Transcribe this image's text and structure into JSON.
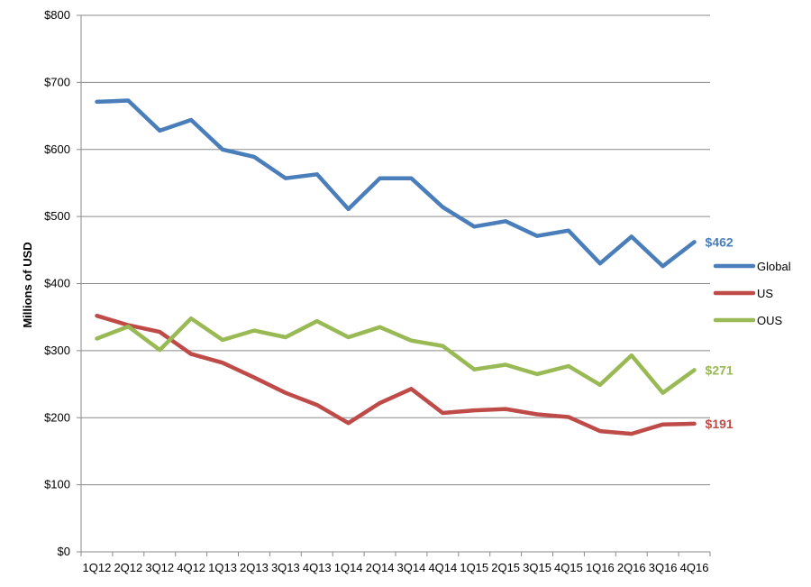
{
  "chart_data": {
    "type": "line",
    "title": "",
    "xlabel": "",
    "ylabel": "Millions of USD",
    "ylim": [
      0,
      800
    ],
    "yticks": [
      "$0",
      "$100",
      "$200",
      "$300",
      "$400",
      "$500",
      "$600",
      "$700",
      "$800"
    ],
    "ytick_values": [
      0,
      100,
      200,
      300,
      400,
      500,
      600,
      700,
      800
    ],
    "categories": [
      "1Q12",
      "2Q12",
      "3Q12",
      "4Q12",
      "1Q13",
      "2Q13",
      "3Q13",
      "4Q13",
      "1Q14",
      "2Q14",
      "3Q14",
      "4Q14",
      "1Q15",
      "2Q15",
      "3Q15",
      "4Q15",
      "1Q16",
      "2Q16",
      "3Q16",
      "4Q16"
    ],
    "grid": true,
    "legend_position": "right",
    "series": [
      {
        "name": "Global",
        "color": "#4a7ebb",
        "values": [
          671,
          673,
          628,
          644,
          600,
          589,
          557,
          563,
          511,
          557,
          557,
          514,
          485,
          493,
          471,
          479,
          430,
          470,
          426,
          462
        ],
        "end_label": "$462"
      },
      {
        "name": "US",
        "color": "#be4b48",
        "values": [
          352,
          338,
          328,
          295,
          282,
          260,
          237,
          219,
          192,
          222,
          243,
          207,
          211,
          213,
          205,
          201,
          180,
          176,
          190,
          191
        ],
        "end_label": "$191"
      },
      {
        "name": "OUS",
        "color": "#98b954",
        "values": [
          318,
          336,
          301,
          348,
          316,
          330,
          320,
          344,
          320,
          335,
          315,
          307,
          272,
          279,
          265,
          277,
          249,
          293,
          237,
          271
        ],
        "end_label": "$271"
      }
    ]
  }
}
